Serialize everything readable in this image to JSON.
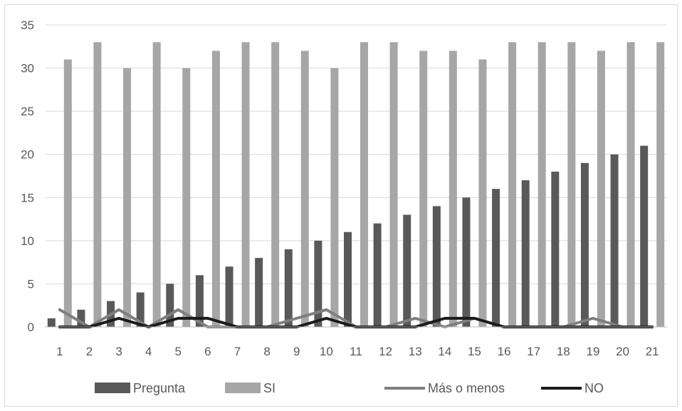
{
  "chart_data": {
    "type": "bar",
    "categories": [
      "1",
      "2",
      "3",
      "4",
      "5",
      "6",
      "7",
      "8",
      "9",
      "10",
      "11",
      "12",
      "13",
      "14",
      "15",
      "16",
      "17",
      "18",
      "19",
      "20",
      "21"
    ],
    "series": [
      {
        "name": "Pregunta",
        "kind": "bar",
        "color": "#595959",
        "values": [
          1,
          2,
          3,
          4,
          5,
          6,
          7,
          8,
          9,
          10,
          11,
          12,
          13,
          14,
          15,
          16,
          17,
          18,
          19,
          20,
          21
        ]
      },
      {
        "name": "SI",
        "kind": "bar",
        "color": "#a6a6a6",
        "values": [
          31,
          33,
          30,
          33,
          30,
          32,
          33,
          33,
          32,
          30,
          33,
          33,
          32,
          32,
          31,
          33,
          33,
          33,
          32,
          33,
          33
        ]
      },
      {
        "name": "Más o menos",
        "kind": "line",
        "color": "#7f7f7f",
        "values": [
          2,
          0,
          2,
          0,
          2,
          0,
          0,
          0,
          1,
          2,
          0,
          0,
          1,
          0,
          1,
          0,
          0,
          0,
          1,
          0,
          0
        ]
      },
      {
        "name": "NO",
        "kind": "line",
        "color": "#1a1a1a",
        "values": [
          0,
          0,
          1,
          0,
          1,
          1,
          0,
          0,
          0,
          1,
          0,
          0,
          0,
          1,
          1,
          0,
          0,
          0,
          0,
          0,
          0
        ]
      }
    ],
    "yticks": [
      "0",
      "5",
      "10",
      "15",
      "20",
      "25",
      "30",
      "35"
    ],
    "ylim": [
      0,
      35
    ],
    "grid": true,
    "legend_position": "bottom"
  }
}
